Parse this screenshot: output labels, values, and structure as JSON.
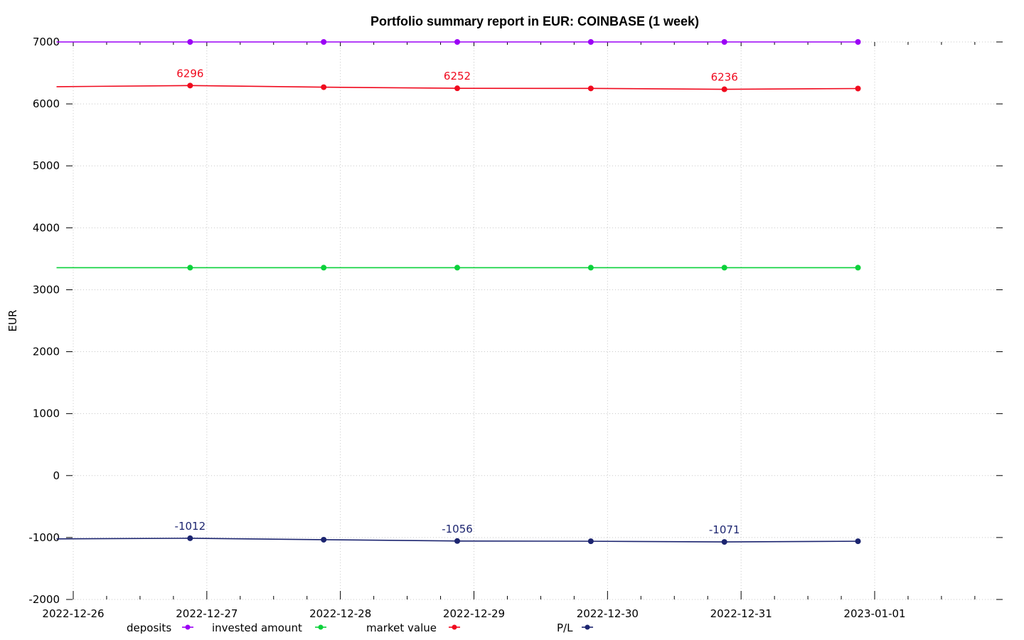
{
  "chart_data": {
    "type": "line",
    "title": "Portfolio summary report in EUR: COINBASE (1 week)",
    "xlabel": "",
    "ylabel": "EUR",
    "ylim": [
      -2000,
      7000
    ],
    "yticks": [
      "7000",
      "6000",
      "5000",
      "4000",
      "3000",
      "2000",
      "1000",
      "0",
      "-1000",
      "-2000"
    ],
    "xlim": [
      "2022-12-26 00:00",
      "2023-01-01 23:59"
    ],
    "xticks": [
      "2022-12-26",
      "2022-12-27",
      "2022-12-28",
      "2022-12-29",
      "2022-12-30",
      "2022-12-31",
      "2023-01-01"
    ],
    "grid": true,
    "legend_position": "bottom",
    "series": [
      {
        "name": "deposits",
        "color": "#9b00f5",
        "x": [
          "2022-12-25 21:00",
          "2022-12-26 21:00",
          "2022-12-27 21:00",
          "2022-12-28 21:00",
          "2022-12-29 21:00",
          "2022-12-30 21:00",
          "2022-12-31 21:00"
        ],
        "values": [
          7000,
          7000,
          7000,
          7000,
          7000,
          7000,
          7000
        ],
        "markers": [
          false,
          true,
          true,
          true,
          true,
          true,
          true
        ],
        "labels": [
          "",
          "",
          "",
          "",
          "",
          "",
          ""
        ]
      },
      {
        "name": "invested amount",
        "color": "#0bd13a",
        "x": [
          "2022-12-25 21:00",
          "2022-12-26 21:00",
          "2022-12-27 21:00",
          "2022-12-28 21:00",
          "2022-12-29 21:00",
          "2022-12-30 21:00",
          "2022-12-31 21:00"
        ],
        "values": [
          3356,
          3356,
          3356,
          3356,
          3356,
          3356,
          3356
        ],
        "markers": [
          false,
          true,
          true,
          true,
          true,
          true,
          true
        ],
        "labels": [
          "",
          "",
          "",
          "",
          "",
          "",
          ""
        ]
      },
      {
        "name": "market value",
        "color": "#f00a1e",
        "x": [
          "2022-12-25 21:00",
          "2022-12-26 21:00",
          "2022-12-27 21:00",
          "2022-12-28 21:00",
          "2022-12-29 21:00",
          "2022-12-30 21:00",
          "2022-12-31 21:00"
        ],
        "values": [
          6278,
          6296,
          6270,
          6252,
          6250,
          6236,
          6248
        ],
        "markers": [
          false,
          true,
          true,
          true,
          true,
          true,
          true
        ],
        "labels": [
          "",
          "6296",
          "",
          "6252",
          "",
          "6236",
          ""
        ]
      },
      {
        "name": "P/L",
        "color": "#1c2570",
        "x": [
          "2022-12-25 21:00",
          "2022-12-26 21:00",
          "2022-12-27 21:00",
          "2022-12-28 21:00",
          "2022-12-29 21:00",
          "2022-12-30 21:00",
          "2022-12-31 21:00"
        ],
        "values": [
          -1022,
          -1012,
          -1035,
          -1056,
          -1060,
          -1071,
          -1060
        ],
        "markers": [
          false,
          true,
          true,
          true,
          true,
          true,
          true
        ],
        "labels": [
          "",
          "-1012",
          "",
          "-1056",
          "",
          "-1071",
          ""
        ]
      }
    ]
  }
}
